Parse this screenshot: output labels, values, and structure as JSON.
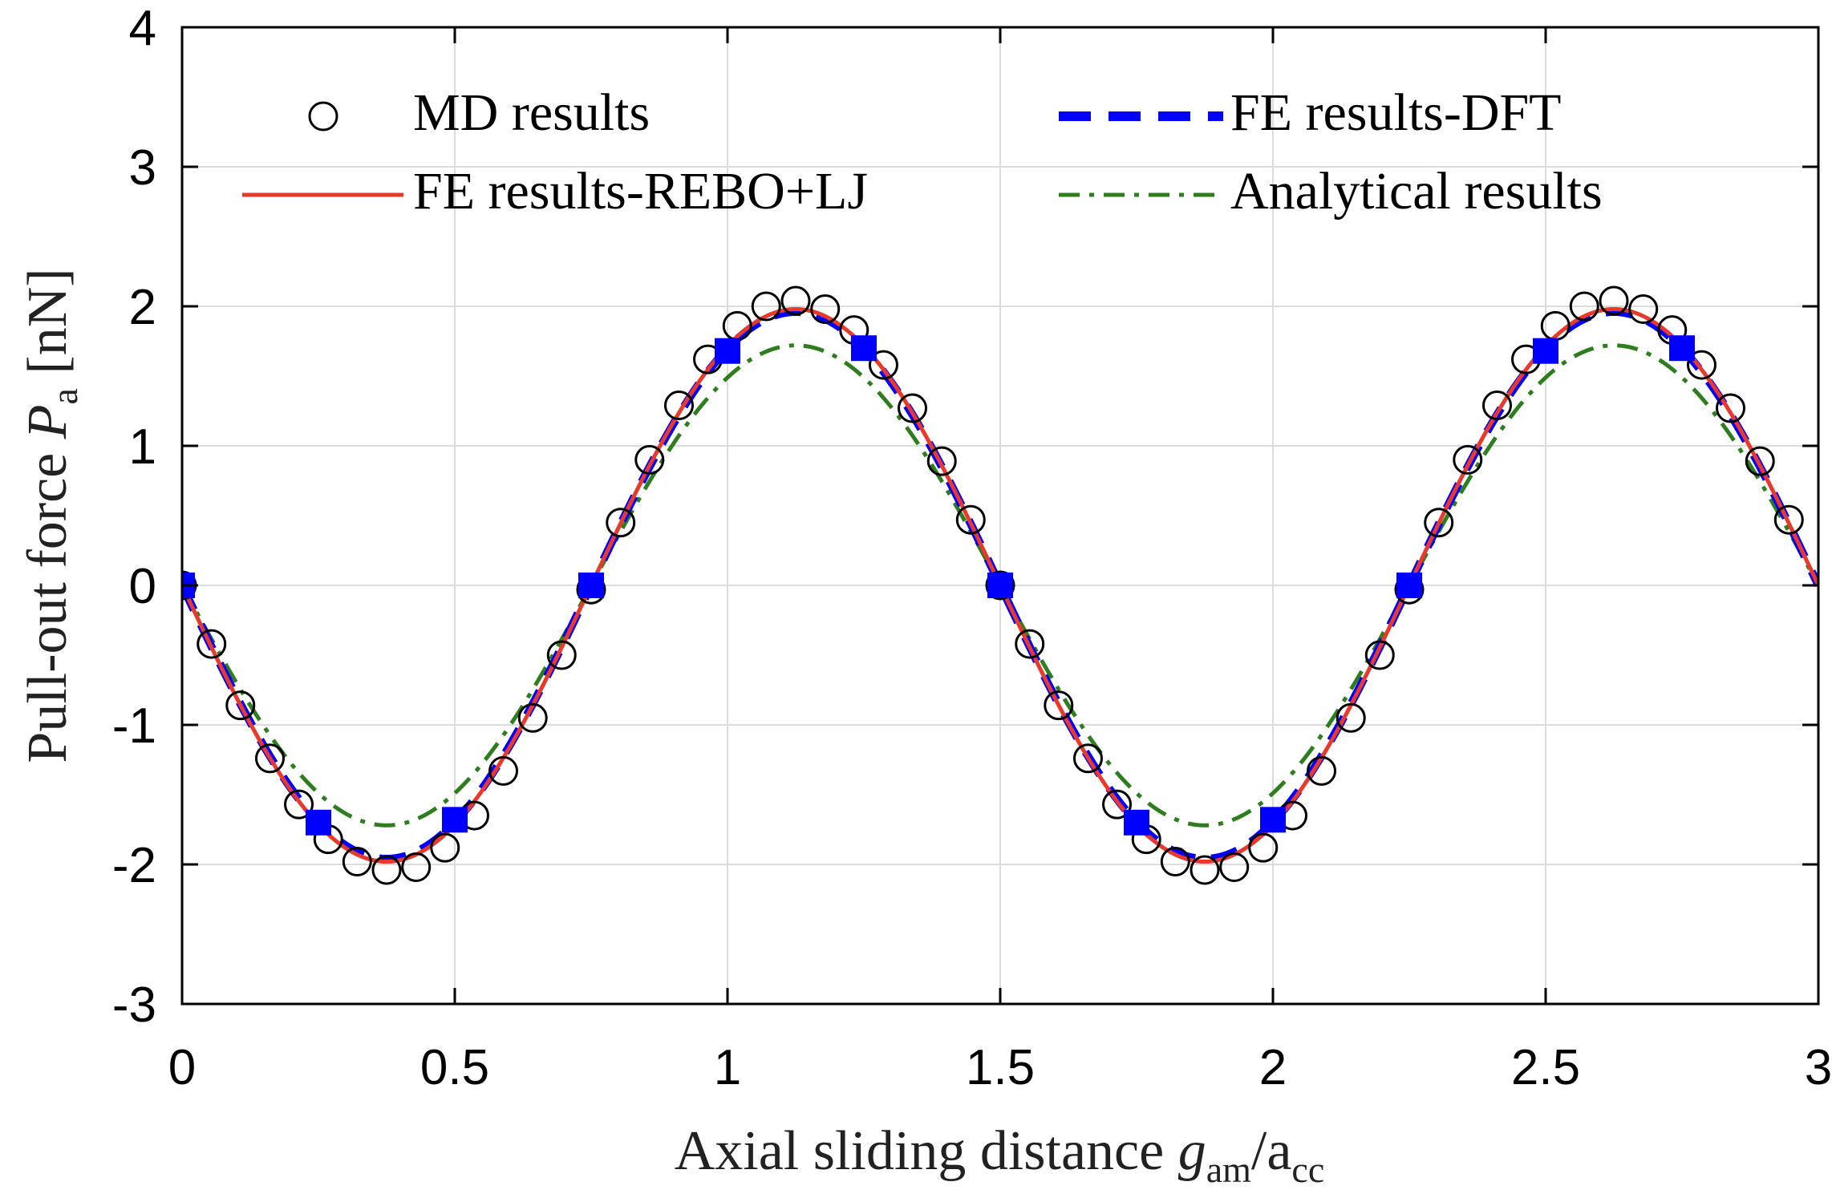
{
  "chart_data": {
    "type": "line",
    "xlabel": {
      "main": "Axial sliding distance ",
      "var": "g",
      "var_sub": "am",
      "sep": "/a",
      "sep_sub": "cc"
    },
    "ylabel": {
      "main": "Pull-out force ",
      "var": "P",
      "var_sub": "a",
      "unit": " [nN]"
    },
    "xlim": [
      0,
      3
    ],
    "ylim": [
      -3,
      4
    ],
    "xticks": [
      0,
      0.5,
      1,
      1.5,
      2,
      2.5,
      3
    ],
    "xtick_labels": [
      "0",
      "0.5",
      "1",
      "1.5",
      "2",
      "2.5",
      "3"
    ],
    "yticks": [
      -3,
      -2,
      -1,
      0,
      1,
      2,
      3,
      4
    ],
    "ytick_labels": [
      "-3",
      "-2",
      "-1",
      "0",
      "1",
      "2",
      "3",
      "4"
    ],
    "grid": true,
    "legend_position": "top",
    "series": [
      {
        "name": "MD results",
        "style": "markers-open-circle",
        "color": "#000000",
        "x": [
          0,
          0.054,
          0.107,
          0.161,
          0.214,
          0.268,
          0.321,
          0.375,
          0.429,
          0.482,
          0.536,
          0.589,
          0.643,
          0.696,
          0.75,
          0.804,
          0.857,
          0.911,
          0.964,
          1.018,
          1.071,
          1.125,
          1.179,
          1.232,
          1.286,
          1.339,
          1.393,
          1.446,
          1.5,
          1.554,
          1.607,
          1.661,
          1.714,
          1.768,
          1.821,
          1.875,
          1.929,
          1.982,
          2.036,
          2.089,
          2.143,
          2.196,
          2.25,
          2.304,
          2.357,
          2.411,
          2.464,
          2.518,
          2.571,
          2.625,
          2.679,
          2.732,
          2.786,
          2.839,
          2.893,
          2.946
        ],
        "y": [
          0,
          -0.42,
          -0.86,
          -1.24,
          -1.57,
          -1.82,
          -1.98,
          -2.04,
          -2.02,
          -1.88,
          -1.65,
          -1.33,
          -0.95,
          -0.5,
          -0.03,
          0.45,
          0.9,
          1.29,
          1.62,
          1.86,
          2.0,
          2.04,
          1.98,
          1.83,
          1.58,
          1.27,
          0.89,
          0.47,
          0,
          -0.42,
          -0.86,
          -1.24,
          -1.57,
          -1.82,
          -1.98,
          -2.04,
          -2.02,
          -1.88,
          -1.65,
          -1.33,
          -0.95,
          -0.5,
          -0.03,
          0.45,
          0.9,
          1.29,
          1.62,
          1.86,
          2.0,
          2.04,
          1.98,
          1.83,
          1.58,
          1.27,
          0.89,
          0.47
        ]
      },
      {
        "name": "FE results-DFT",
        "style": "dashed-with-square-markers",
        "color": "#0000ff",
        "amplitude": 1.96,
        "period": 1.5,
        "markers": {
          "x": [
            0,
            0.25,
            0.5,
            0.75,
            1.0,
            1.25,
            1.5,
            1.75,
            2.0,
            2.25,
            2.5,
            2.75
          ],
          "y": [
            0,
            -1.7,
            -1.68,
            0,
            1.68,
            1.7,
            0,
            -1.7,
            -1.68,
            0,
            1.68,
            1.7
          ]
        }
      },
      {
        "name": "FE results-REBO+LJ",
        "style": "solid",
        "color": "#e8392c",
        "amplitude": 1.98,
        "period": 1.5
      },
      {
        "name": "Analytical results",
        "style": "dash-dot",
        "color": "#2e7d1f",
        "amplitude": 1.72,
        "period": 1.5
      }
    ]
  }
}
